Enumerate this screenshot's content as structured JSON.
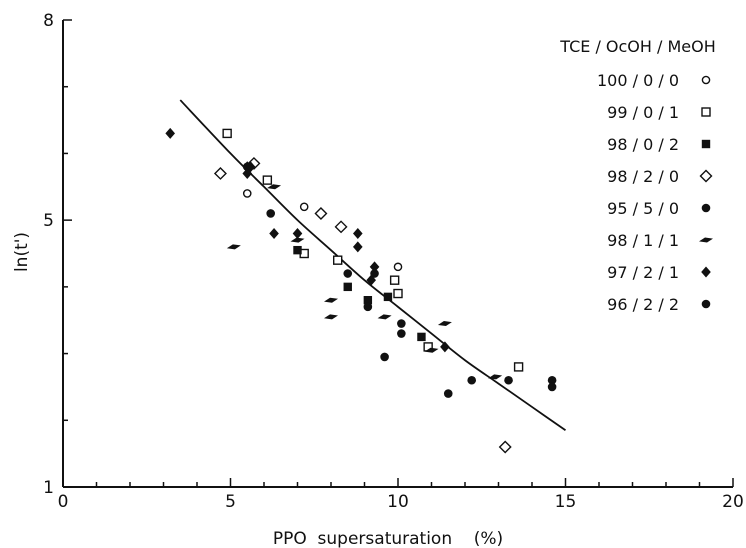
{
  "chart_data": {
    "type": "scatter",
    "xlabel": "PPO  supersaturation    (%)",
    "ylabel": "ln(t')",
    "xlim": [
      0,
      20
    ],
    "ylim": [
      1,
      8
    ],
    "x_ticks": [
      0,
      5,
      10,
      15,
      20
    ],
    "x_tick_labels": [
      "0",
      "5",
      "10",
      "15",
      "20"
    ],
    "y_ticks": [
      1,
      5,
      8
    ],
    "y_tick_labels": [
      "1",
      "5",
      "8"
    ],
    "grid": false,
    "legend_placement": "top-right",
    "legend_title": "TCE / OcOH / MeOH",
    "series": [
      {
        "name": "100 / 0 / 0",
        "marker": "open-circle",
        "points": [
          [
            5.5,
            5.4
          ],
          [
            7.2,
            5.2
          ],
          [
            10.0,
            4.3
          ]
        ]
      },
      {
        "name": "99 / 0 / 1",
        "marker": "open-square",
        "points": [
          [
            4.9,
            6.3
          ],
          [
            6.1,
            5.6
          ],
          [
            7.2,
            4.5
          ],
          [
            8.2,
            4.4
          ],
          [
            9.9,
            4.1
          ],
          [
            10.0,
            3.9
          ],
          [
            10.9,
            3.1
          ],
          [
            13.6,
            2.8
          ]
        ]
      },
      {
        "name": "98 / 0 / 2",
        "marker": "filled-square",
        "points": [
          [
            7.0,
            4.55
          ],
          [
            8.5,
            4.0
          ],
          [
            9.1,
            3.8
          ],
          [
            9.7,
            3.85
          ],
          [
            10.7,
            3.25
          ]
        ]
      },
      {
        "name": "98 / 2 / 0",
        "marker": "open-diamond",
        "points": [
          [
            4.7,
            5.7
          ],
          [
            5.7,
            5.85
          ],
          [
            7.7,
            5.1
          ],
          [
            8.3,
            4.9
          ],
          [
            13.2,
            1.6
          ]
        ]
      },
      {
        "name": "95 / 5 / 0",
        "marker": "filled-circle",
        "points": [
          [
            5.5,
            5.8
          ],
          [
            6.2,
            5.1
          ],
          [
            8.5,
            4.2
          ],
          [
            9.3,
            4.2
          ],
          [
            9.6,
            2.95
          ],
          [
            11.5,
            2.4
          ],
          [
            12.2,
            2.6
          ]
        ]
      },
      {
        "name": "98 / 1 / 1",
        "marker": "filled-dash",
        "points": [
          [
            5.1,
            4.6
          ],
          [
            6.3,
            5.5
          ],
          [
            7.0,
            4.7
          ],
          [
            8.0,
            3.8
          ],
          [
            8.0,
            3.55
          ],
          [
            9.6,
            3.55
          ],
          [
            11.0,
            3.05
          ],
          [
            11.4,
            3.45
          ],
          [
            12.9,
            2.65
          ]
        ]
      },
      {
        "name": "97 / 2 / 1",
        "marker": "filled-diamond",
        "points": [
          [
            3.2,
            6.3
          ],
          [
            5.5,
            5.8
          ],
          [
            5.5,
            5.7
          ],
          [
            5.6,
            5.8
          ],
          [
            6.3,
            4.8
          ],
          [
            7.0,
            4.8
          ],
          [
            8.8,
            4.8
          ],
          [
            8.8,
            4.6
          ],
          [
            9.2,
            4.1
          ],
          [
            9.3,
            4.3
          ],
          [
            11.4,
            3.1
          ]
        ]
      },
      {
        "name": "96 / 2 / 2",
        "marker": "filled-circle",
        "points": [
          [
            9.1,
            3.7
          ],
          [
            10.1,
            3.45
          ],
          [
            10.1,
            3.3
          ],
          [
            13.3,
            2.6
          ],
          [
            14.6,
            2.6
          ],
          [
            14.6,
            2.5
          ]
        ]
      }
    ],
    "fit_curve": {
      "type": "line",
      "x": [
        3.5,
        5,
        6,
        7,
        8,
        9,
        10,
        11,
        12,
        13,
        14,
        15
      ],
      "y": [
        6.8,
        6.0,
        5.5,
        5.0,
        4.55,
        4.1,
        3.7,
        3.3,
        2.9,
        2.55,
        2.2,
        1.85
      ]
    }
  }
}
